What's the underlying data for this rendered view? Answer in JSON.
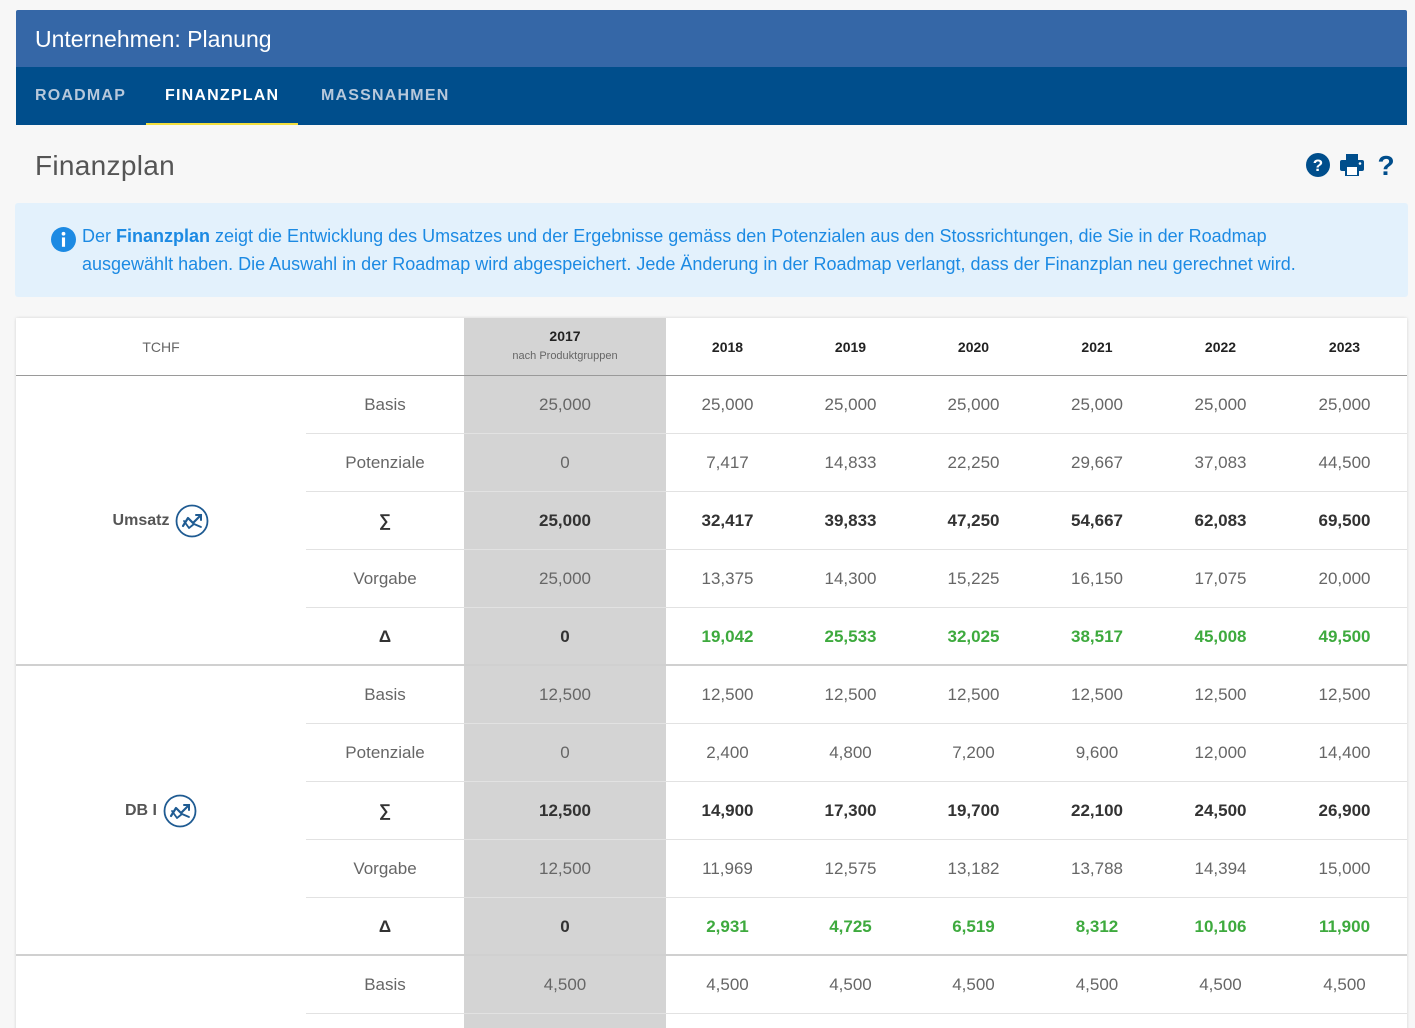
{
  "app": {
    "title": "Unternehmen: Planung"
  },
  "tabs": [
    {
      "label": "ROADMAP"
    },
    {
      "label": "FINANZPLAN"
    },
    {
      "label": "MASSNAHMEN"
    }
  ],
  "page": {
    "title": "Finanzplan",
    "icons": [
      "help-circle-icon",
      "print-icon",
      "question-mark-icon"
    ]
  },
  "info": {
    "prefix": "Der ",
    "highlight": "Finanzplan",
    "line1": " zeigt die Entwicklung des Umsatzes und der Ergebnisse gemäss den Potenzialen aus den Stossrichtungen, die Sie in der Roadmap",
    "line2": "ausgewählt haben. Die Auswahl in der Roadmap wird abgespeichert. Jede Änderung in der Roadmap verlangt, dass der Finanzplan neu gerechnet wird."
  },
  "table": {
    "unit": "TCHF",
    "years": [
      "2017",
      "2018",
      "2019",
      "2020",
      "2021",
      "2022",
      "2023"
    ],
    "base_year_note": "nach Produktgruppen",
    "groups": [
      {
        "label": "Umsatz",
        "icon": "trend-chart-icon",
        "rows": [
          {
            "label": "Basis",
            "style": "normal",
            "values": [
              "25,000",
              "25,000",
              "25,000",
              "25,000",
              "25,000",
              "25,000",
              "25,000"
            ]
          },
          {
            "label": "Potenziale",
            "style": "normal",
            "values": [
              "0",
              "7,417",
              "14,833",
              "22,250",
              "29,667",
              "37,083",
              "44,500"
            ]
          },
          {
            "label": "∑",
            "style": "sum",
            "values": [
              "25,000",
              "32,417",
              "39,833",
              "47,250",
              "54,667",
              "62,083",
              "69,500"
            ]
          },
          {
            "label": "Vorgabe",
            "style": "normal",
            "values": [
              "25,000",
              "13,375",
              "14,300",
              "15,225",
              "16,150",
              "17,075",
              "20,000"
            ]
          },
          {
            "label": "Δ",
            "style": "delta",
            "values": [
              "0",
              "19,042",
              "25,533",
              "32,025",
              "38,517",
              "45,008",
              "49,500"
            ]
          }
        ]
      },
      {
        "label": "DB I",
        "icon": "trend-chart-icon",
        "rows": [
          {
            "label": "Basis",
            "style": "normal",
            "values": [
              "12,500",
              "12,500",
              "12,500",
              "12,500",
              "12,500",
              "12,500",
              "12,500"
            ]
          },
          {
            "label": "Potenziale",
            "style": "normal",
            "values": [
              "0",
              "2,400",
              "4,800",
              "7,200",
              "9,600",
              "12,000",
              "14,400"
            ]
          },
          {
            "label": "∑",
            "style": "sum",
            "values": [
              "12,500",
              "14,900",
              "17,300",
              "19,700",
              "22,100",
              "24,500",
              "26,900"
            ]
          },
          {
            "label": "Vorgabe",
            "style": "normal",
            "values": [
              "12,500",
              "11,969",
              "12,575",
              "13,182",
              "13,788",
              "14,394",
              "15,000"
            ]
          },
          {
            "label": "Δ",
            "style": "delta",
            "values": [
              "0",
              "2,931",
              "4,725",
              "6,519",
              "8,312",
              "10,106",
              "11,900"
            ]
          }
        ]
      },
      {
        "label": "",
        "icon": "",
        "rows": [
          {
            "label": "Basis",
            "style": "normal",
            "values": [
              "4,500",
              "4,500",
              "4,500",
              "4,500",
              "4,500",
              "4,500",
              "4,500"
            ]
          }
        ]
      }
    ]
  }
}
